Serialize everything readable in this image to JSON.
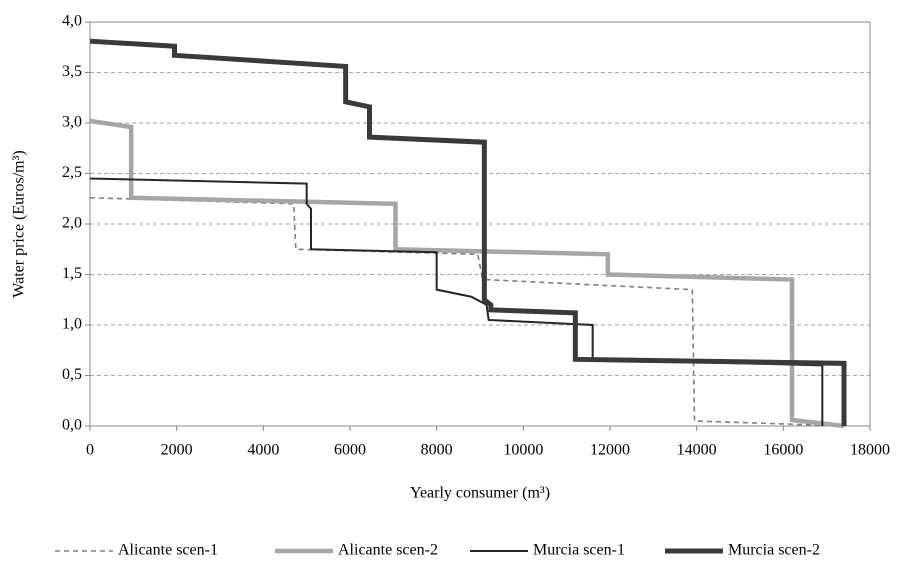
{
  "chart_data": {
    "type": "line",
    "x_label": "Yearly consumer (m³)",
    "y_label": "Water price (Euros/m³)",
    "xlim": [
      0,
      18000
    ],
    "xticks": [
      0,
      2000,
      4000,
      6000,
      8000,
      10000,
      12000,
      14000,
      16000,
      18000
    ],
    "ylim": [
      0,
      4
    ],
    "yticks": [
      {
        "value": 0,
        "label": "0,0"
      },
      {
        "value": 0.5,
        "label": "0,5"
      },
      {
        "value": 1,
        "label": "1,0"
      },
      {
        "value": 1.5,
        "label": "1,5"
      },
      {
        "value": 2,
        "label": "2,0"
      },
      {
        "value": 2.5,
        "label": "2,5"
      },
      {
        "value": 3,
        "label": "3,0"
      },
      {
        "value": 3.5,
        "label": "3,5"
      },
      {
        "value": 4,
        "label": "4,0"
      }
    ],
    "grid": true,
    "legend": "bottom",
    "series": [
      {
        "name": "Alicante scen-1",
        "color": "#7f7f7f",
        "x": [
          0,
          4700,
          4750,
          8950,
          9050,
          9100,
          13900,
          13950,
          17400
        ],
        "values": [
          2.26,
          2.2,
          1.75,
          1.7,
          1.47,
          1.45,
          1.35,
          0.05,
          0
        ]
      },
      {
        "name": "Alicante scen-2",
        "color": "#a6a6a6",
        "x": [
          0,
          950,
          950,
          7050,
          7050,
          11950,
          11950,
          16200,
          16200,
          17400
        ],
        "values": [
          3.02,
          2.96,
          2.26,
          2.2,
          1.75,
          1.7,
          1.5,
          1.45,
          0.06,
          0
        ]
      },
      {
        "name": "Murcia scen-1",
        "color": "#262626",
        "x": [
          0,
          5000,
          5000,
          5100,
          5100,
          8000,
          8000,
          8800,
          9150,
          9200,
          11600,
          11600,
          16900,
          16900
        ],
        "values": [
          2.45,
          2.4,
          2.2,
          2.15,
          1.75,
          1.72,
          1.35,
          1.28,
          1.2,
          1.05,
          1.0,
          0.66,
          0.6,
          0
        ]
      },
      {
        "name": "Murcia scen-2",
        "color": "#3a3a3a",
        "x": [
          0,
          1950,
          1950,
          5900,
          5900,
          6450,
          6450,
          9100,
          9100,
          9250,
          9250,
          11200,
          11200,
          17400,
          17400
        ],
        "values": [
          3.81,
          3.76,
          3.67,
          3.56,
          3.21,
          3.16,
          2.86,
          2.81,
          1.25,
          1.2,
          1.15,
          1.12,
          0.66,
          0.62,
          0
        ]
      }
    ]
  }
}
